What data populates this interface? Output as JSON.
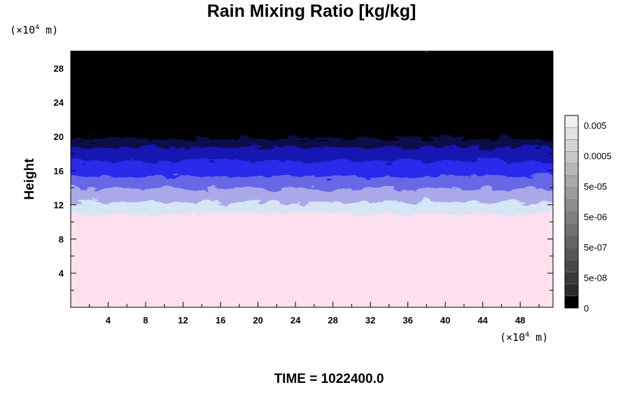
{
  "chart_data": {
    "type": "heatmap",
    "title": "Rain Mixing Ratio [kg/kg]",
    "ylabel": "Height",
    "y_unit_prefix": "(×10",
    "y_unit_exp": "4",
    "y_unit_suffix": " m)",
    "x_unit_prefix": "(×10",
    "x_unit_exp": "4",
    "x_unit_suffix": " m)",
    "xlim": [
      0,
      51.5
    ],
    "ylim": [
      0,
      30
    ],
    "x_ticks": [
      4,
      8,
      12,
      16,
      20,
      24,
      28,
      32,
      36,
      40,
      44,
      48
    ],
    "y_ticks": [
      4,
      8,
      12,
      16,
      20,
      24,
      28
    ],
    "field_layers": [
      {
        "from": 0,
        "to": 10.6,
        "color": "#fde0ee"
      },
      {
        "from": 10.6,
        "to": 12.0,
        "color": "#d6e6f6"
      },
      {
        "from": 12.0,
        "to": 13.6,
        "color": "#a9a9ea"
      },
      {
        "from": 13.6,
        "to": 15.0,
        "color": "#6767e6"
      },
      {
        "from": 15.0,
        "to": 16.8,
        "color": "#2b2bec"
      },
      {
        "from": 16.8,
        "to": 18.4,
        "color": "#1212b0"
      },
      {
        "from": 18.4,
        "to": 19.4,
        "color": "#09094a"
      },
      {
        "from": 19.4,
        "to": 30,
        "color": "#000000"
      }
    ],
    "colorbar": {
      "labels": [
        "0.005",
        "0.0005",
        "5e-05",
        "5e-06",
        "5e-07",
        "5e-08",
        "0"
      ],
      "levels": 16
    },
    "time_label": "TIME = 1022400.0"
  }
}
